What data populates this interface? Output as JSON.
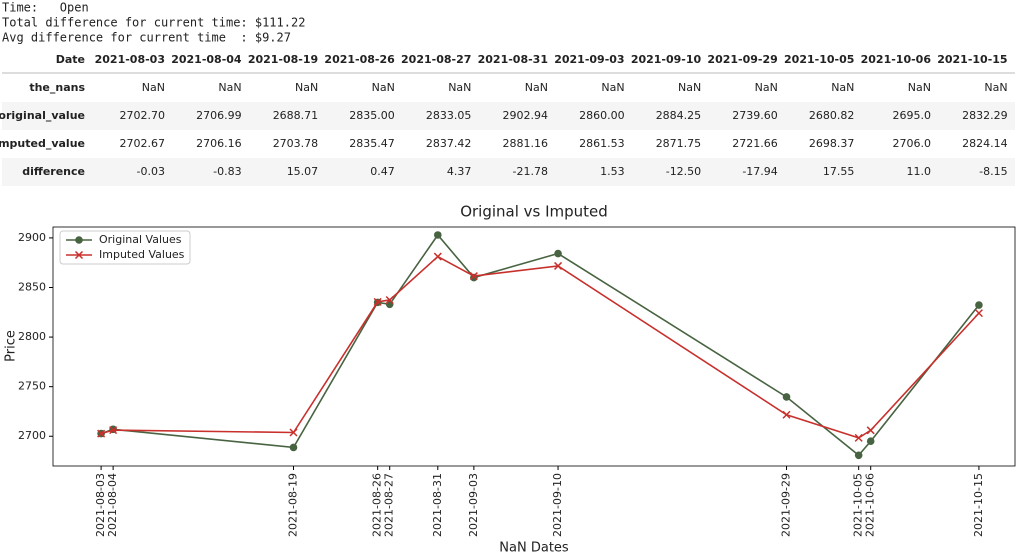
{
  "output": {
    "lines": [
      "Time:   Open",
      "Total difference for current time: $111.22",
      "Avg difference for current time  : $9.27"
    ]
  },
  "table": {
    "index_name": "Date",
    "columns": [
      "2021-08-03",
      "2021-08-04",
      "2021-08-19",
      "2021-08-26",
      "2021-08-27",
      "2021-08-31",
      "2021-09-03",
      "2021-09-10",
      "2021-09-29",
      "2021-10-05",
      "2021-10-06",
      "2021-10-15"
    ],
    "rows": [
      {
        "label": "the_nans",
        "cells": [
          "NaN",
          "NaN",
          "NaN",
          "NaN",
          "NaN",
          "NaN",
          "NaN",
          "NaN",
          "NaN",
          "NaN",
          "NaN",
          "NaN"
        ]
      },
      {
        "label": "original_value",
        "cells": [
          "2702.70",
          "2706.99",
          "2688.71",
          "2835.00",
          "2833.05",
          "2902.94",
          "2860.00",
          "2884.25",
          "2739.60",
          "2680.82",
          "2695.0",
          "2832.29"
        ]
      },
      {
        "label": "imputed_value",
        "cells": [
          "2702.67",
          "2706.16",
          "2703.78",
          "2835.47",
          "2837.42",
          "2881.16",
          "2861.53",
          "2871.75",
          "2721.66",
          "2698.37",
          "2706.0",
          "2824.14"
        ]
      },
      {
        "label": "difference",
        "cells": [
          "-0.03",
          "-0.83",
          "15.07",
          "0.47",
          "4.37",
          "-21.78",
          "1.53",
          "-12.50",
          "-17.94",
          "17.55",
          "11.0",
          "-8.15"
        ]
      }
    ]
  },
  "chart_data": {
    "type": "line",
    "title": "Original vs Imputed",
    "x_label": "NaN Dates",
    "y_label": "Price",
    "x": [
      "2021-08-03",
      "2021-08-04",
      "2021-08-19",
      "2021-08-26",
      "2021-08-27",
      "2021-08-31",
      "2021-09-03",
      "2021-09-10",
      "2021-09-29",
      "2021-10-05",
      "2021-10-06",
      "2021-10-15"
    ],
    "series": [
      {
        "name": "Original Values",
        "color": "#486341",
        "marker": "circle",
        "values": [
          2702.7,
          2706.99,
          2688.71,
          2835.0,
          2833.05,
          2902.94,
          2860.0,
          2884.25,
          2739.6,
          2680.82,
          2695.0,
          2832.29
        ]
      },
      {
        "name": "Imputed Values",
        "color": "#c8302c",
        "marker": "x",
        "values": [
          2702.67,
          2706.16,
          2703.78,
          2835.47,
          2837.42,
          2881.16,
          2861.53,
          2871.75,
          2721.66,
          2698.37,
          2706.0,
          2824.14
        ]
      }
    ],
    "xlim": [
      "2021-07-30",
      "2021-10-18"
    ],
    "ylim": [
      2670,
      2911
    ],
    "yticks": [
      2700,
      2750,
      2800,
      2850,
      2900
    ],
    "legend": "upper-left",
    "grid": false
  }
}
